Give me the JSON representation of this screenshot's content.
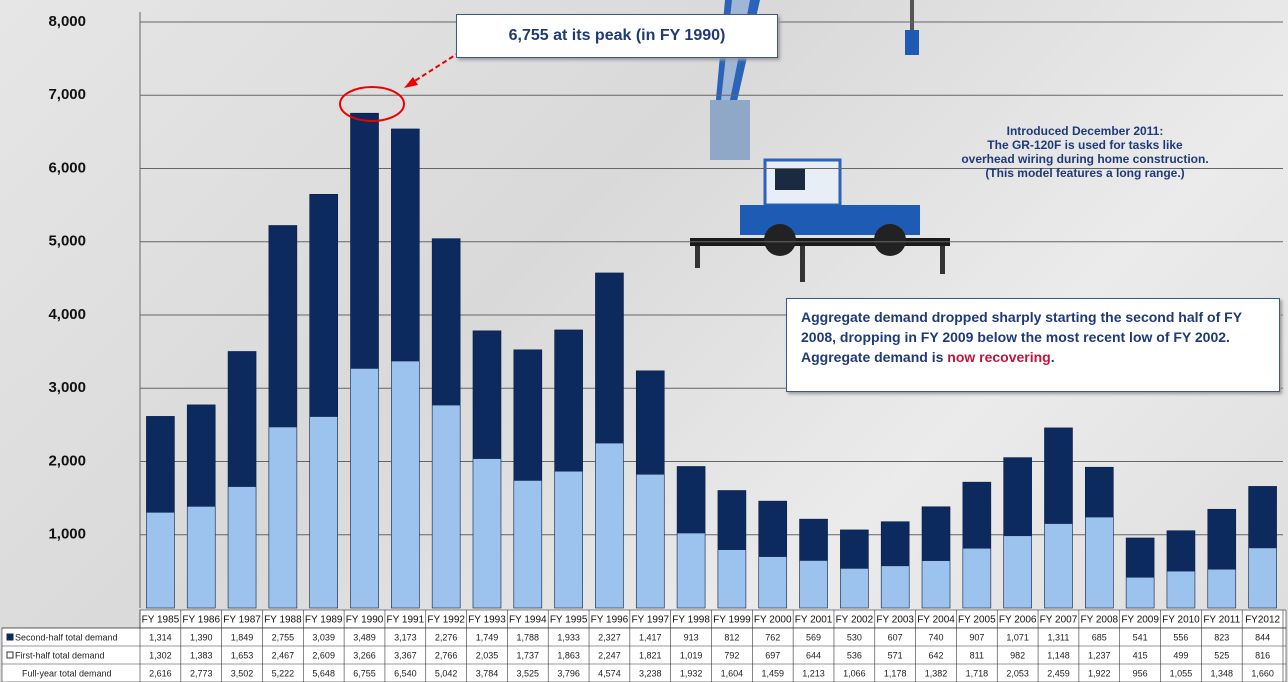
{
  "chart_data": {
    "type": "stacked-bar",
    "categories": [
      "FY 1985",
      "FY 1986",
      "FY 1987",
      "FY 1988",
      "FY 1989",
      "FY 1990",
      "FY 1991",
      "FY 1992",
      "FY 1993",
      "FY 1994",
      "FY 1995",
      "FY 1996",
      "FY 1997",
      "FY 1998",
      "FY 1999",
      "FY 2000",
      "FY 2001",
      "FY 2002",
      "FY 2003",
      "FY 2004",
      "FY 2005",
      "FY 2006",
      "FY 2007",
      "FY 2008",
      "FY 2009",
      "FY 2010",
      "FY 2011",
      "FY2012"
    ],
    "series": [
      {
        "name": "First-half total demand",
        "color": "#9cc2ee",
        "values": [
          1302,
          1383,
          1653,
          2467,
          2609,
          3266,
          3367,
          2766,
          2035,
          1737,
          1863,
          2247,
          1821,
          1019,
          792,
          697,
          644,
          536,
          571,
          642,
          811,
          982,
          1148,
          1237,
          415,
          499,
          525,
          816
        ],
        "value_labels": [
          "1,302",
          "1,383",
          "1,653",
          "2,467",
          "2,609",
          "3,266",
          "3,367",
          "2,766",
          "2,035",
          "1,737",
          "1,863",
          "2,247",
          "1,821",
          "1,019",
          "792",
          "697",
          "644",
          "536",
          "571",
          "642",
          "811",
          "982",
          "1,148",
          "1,237",
          "415",
          "499",
          "525",
          "816"
        ]
      },
      {
        "name": "Second-half total demand",
        "color": "#0c2a5e",
        "values": [
          1314,
          1390,
          1849,
          2755,
          3039,
          3489,
          3173,
          2276,
          1749,
          1788,
          1933,
          2327,
          1417,
          913,
          812,
          762,
          569,
          530,
          607,
          740,
          907,
          1071,
          1311,
          685,
          541,
          556,
          823,
          844
        ],
        "value_labels": [
          "1,314",
          "1,390",
          "1,849",
          "2,755",
          "3,039",
          "3,489",
          "3,173",
          "2,276",
          "1,749",
          "1,788",
          "1,933",
          "2,327",
          "1,417",
          "913",
          "812",
          "762",
          "569",
          "530",
          "607",
          "740",
          "907",
          "1,071",
          "1,311",
          "685",
          "541",
          "556",
          "823",
          "844"
        ]
      }
    ],
    "totals": {
      "name": "Full-year total demand",
      "values": [
        2616,
        2773,
        3502,
        5222,
        5648,
        6755,
        6540,
        5042,
        3784,
        3525,
        3796,
        4574,
        3238,
        1932,
        1604,
        1459,
        1213,
        1066,
        1178,
        1382,
        1718,
        2053,
        2459,
        1922,
        956,
        1055,
        1348,
        1660
      ],
      "value_labels": [
        "2,616",
        "2,773",
        "3,502",
        "5,222",
        "5,648",
        "6,755",
        "6,540",
        "5,042",
        "3,784",
        "3,525",
        "3,796",
        "4,574",
        "3,238",
        "1,932",
        "1,604",
        "1,459",
        "1,213",
        "1,066",
        "1,178",
        "1,382",
        "1,718",
        "2,053",
        "2,459",
        "1,922",
        "956",
        "1,055",
        "1,348",
        "1,660"
      ]
    },
    "ylim": [
      0,
      8000
    ],
    "yticks": [
      {
        "value": 1000,
        "label": "1,000"
      },
      {
        "value": 2000,
        "label": "2,000"
      },
      {
        "value": 3000,
        "label": "3,000"
      },
      {
        "value": 4000,
        "label": "4,000"
      },
      {
        "value": 5000,
        "label": "5,000"
      },
      {
        "value": 6000,
        "label": "6,000"
      },
      {
        "value": 7000,
        "label": "7,000"
      },
      {
        "value": 8000,
        "label": "8,000"
      }
    ],
    "grid": true,
    "annotations": {
      "peak": "6,755 at its peak (in FY 1990)",
      "crane": [
        "Introduced December 2011:",
        "The GR-120F is used for tasks like",
        "overhead wiring during home construction.",
        "(This model features a long range.)"
      ],
      "note": {
        "text": "Aggregate demand dropped sharply starting the second half of FY 2008, dropping in FY 2009 below the most recent low of FY 2002. Aggregate demand is",
        "highlight": "now recovering",
        "end": "."
      }
    }
  }
}
